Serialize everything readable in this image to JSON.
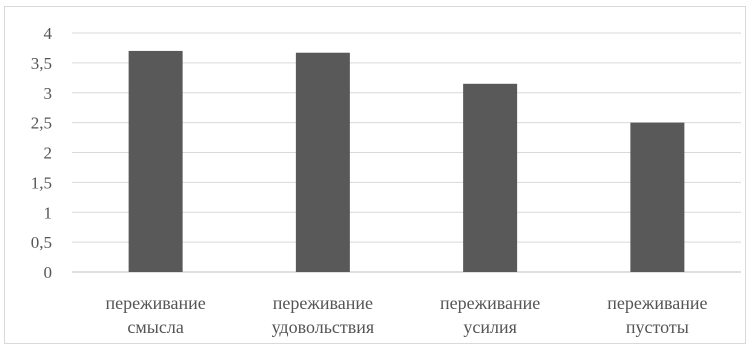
{
  "chart_data": {
    "type": "bar",
    "categories": [
      [
        "переживание",
        "смысла"
      ],
      [
        "переживание",
        "удовольствия"
      ],
      [
        "переживание",
        "усилия"
      ],
      [
        "переживание",
        "пустоты"
      ]
    ],
    "values": [
      3.7,
      3.67,
      3.15,
      2.5
    ],
    "yticks": [
      "0",
      "0,5",
      "1",
      "1,5",
      "2",
      "2,5",
      "3",
      "3,5",
      "4"
    ],
    "ylim": [
      0,
      4
    ],
    "grid": true,
    "legend": "none",
    "title": "",
    "xlabel": "",
    "ylabel": "",
    "colors": {
      "bar": "#595959",
      "grid": "#d9d9d9",
      "axis": "#bfbfbf",
      "text": "#555555"
    }
  }
}
